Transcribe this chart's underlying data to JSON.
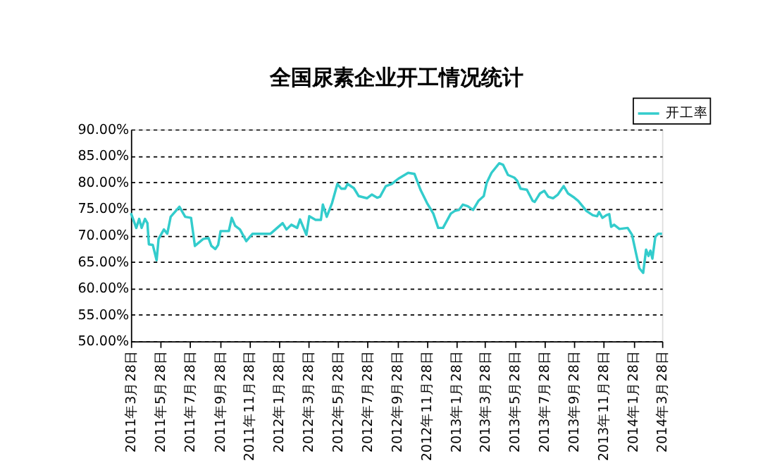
{
  "chart_data": {
    "type": "line",
    "title": "全国尿素企业开工情况统计",
    "x": [
      "2011-03-28",
      "2011-04-08",
      "2011-04-14",
      "2011-04-19",
      "2011-04-26",
      "2011-05-01",
      "2011-05-04",
      "2011-05-12",
      "2011-05-20",
      "2011-05-24",
      "2011-06-04",
      "2011-06-11",
      "2011-06-18",
      "2011-07-06",
      "2011-07-18",
      "2011-07-30",
      "2011-08-07",
      "2011-08-24",
      "2011-09-04",
      "2011-09-10",
      "2011-09-18",
      "2011-09-24",
      "2011-09-29",
      "2011-10-16",
      "2011-10-22",
      "2011-10-29",
      "2011-11-08",
      "2011-11-21",
      "2011-12-04",
      "2012-01-10",
      "2012-02-04",
      "2012-02-12",
      "2012-02-22",
      "2012-03-05",
      "2012-03-11",
      "2012-03-24",
      "2012-03-30",
      "2012-04-12",
      "2012-04-23",
      "2012-04-27",
      "2012-05-05",
      "2012-05-16",
      "2012-05-27",
      "2012-06-04",
      "2012-06-12",
      "2012-06-17",
      "2012-06-30",
      "2012-07-10",
      "2012-07-27",
      "2012-08-06",
      "2012-08-17",
      "2012-08-23",
      "2012-09-04",
      "2012-09-16",
      "2012-09-30",
      "2012-10-20",
      "2012-11-02",
      "2012-11-15",
      "2012-11-28",
      "2012-12-11",
      "2012-12-21",
      "2012-12-31",
      "2013-01-16",
      "2013-01-24",
      "2013-02-02",
      "2013-02-10",
      "2013-02-20",
      "2013-03-03",
      "2013-03-14",
      "2013-03-25",
      "2013-03-31",
      "2013-04-10",
      "2013-04-26",
      "2013-05-04",
      "2013-05-14",
      "2013-05-27",
      "2013-06-02",
      "2013-06-09",
      "2013-06-22",
      "2013-07-04",
      "2013-07-08",
      "2013-07-19",
      "2013-07-28",
      "2013-08-05",
      "2013-08-15",
      "2013-08-25",
      "2013-09-06",
      "2013-09-15",
      "2013-09-28",
      "2013-10-06",
      "2013-10-15",
      "2013-10-23",
      "2013-11-05",
      "2013-11-14",
      "2013-11-18",
      "2013-11-25",
      "2013-12-03",
      "2013-12-09",
      "2013-12-13",
      "2013-12-19",
      "2013-12-30",
      "2014-01-16",
      "2014-01-25",
      "2014-02-02",
      "2014-02-09",
      "2014-02-17",
      "2014-02-23",
      "2014-02-28",
      "2014-03-04",
      "2014-03-08",
      "2014-03-14",
      "2014-03-20",
      "2014-03-28"
    ],
    "series": [
      {
        "name": "开工率",
        "color": "#33cccc",
        "values": [
          74.2,
          71.4,
          73.1,
          71.4,
          73.1,
          72.3,
          68.3,
          68.2,
          65.3,
          69.3,
          71.1,
          70.3,
          73.5,
          75.4,
          73.5,
          73.3,
          68.0,
          69.3,
          69.5,
          68.0,
          67.4,
          68.2,
          70.8,
          70.8,
          73.3,
          71.8,
          71.1,
          68.9,
          70.3,
          70.3,
          72.3,
          71.1,
          72.0,
          71.4,
          73.0,
          70.1,
          73.6,
          72.9,
          72.9,
          75.8,
          73.5,
          76.1,
          79.7,
          78.8,
          78.8,
          79.7,
          78.9,
          77.4,
          77.0,
          77.7,
          77.1,
          77.3,
          79.3,
          79.7,
          80.7,
          81.8,
          81.6,
          78.5,
          76.1,
          74.1,
          71.4,
          71.4,
          74.1,
          74.6,
          74.8,
          75.8,
          75.5,
          74.8,
          76.5,
          77.4,
          79.9,
          81.8,
          83.6,
          83.3,
          81.4,
          80.9,
          80.3,
          78.8,
          78.6,
          76.5,
          76.3,
          77.9,
          78.4,
          77.3,
          77.0,
          77.7,
          79.3,
          77.9,
          77.1,
          76.5,
          75.5,
          74.6,
          73.8,
          73.6,
          74.4,
          73.3,
          73.8,
          74.0,
          71.6,
          72.0,
          71.2,
          71.4,
          70.1,
          66.7,
          63.8,
          62.9,
          67.3,
          66.1,
          67.1,
          65.6,
          69.7,
          70.3,
          70.3
        ]
      }
    ],
    "xlim": [
      "2011-03-28",
      "2014-03-28"
    ],
    "xticks": [
      {
        "value": "2011-03-28",
        "label": "2011年3月28日"
      },
      {
        "value": "2011-05-28",
        "label": "2011年5月28日"
      },
      {
        "value": "2011-07-28",
        "label": "2011年7月28日"
      },
      {
        "value": "2011-09-28",
        "label": "2011年9月28日"
      },
      {
        "value": "2011-11-28",
        "label": "2011年11月28日"
      },
      {
        "value": "2012-01-28",
        "label": "2012年1月28日"
      },
      {
        "value": "2012-03-28",
        "label": "2012年3月28日"
      },
      {
        "value": "2012-05-28",
        "label": "2012年5月28日"
      },
      {
        "value": "2012-07-28",
        "label": "2012年7月28日"
      },
      {
        "value": "2012-09-28",
        "label": "2012年9月28日"
      },
      {
        "value": "2012-11-28",
        "label": "2012年11月28日"
      },
      {
        "value": "2013-01-28",
        "label": "2013年1月28日"
      },
      {
        "value": "2013-03-28",
        "label": "2013年3月28日"
      },
      {
        "value": "2013-05-28",
        "label": "2013年5月28日"
      },
      {
        "value": "2013-07-28",
        "label": "2013年7月28日"
      },
      {
        "value": "2013-09-28",
        "label": "2013年9月28日"
      },
      {
        "value": "2013-11-28",
        "label": "2013年11月28日"
      },
      {
        "value": "2014-01-28",
        "label": "2014年1月28日"
      },
      {
        "value": "2014-03-28",
        "label": "2014年3月28日"
      }
    ],
    "ylim": [
      50,
      90
    ],
    "yticks": [
      {
        "value": 50,
        "label": "50.00%"
      },
      {
        "value": 55,
        "label": "55.00%"
      },
      {
        "value": 60,
        "label": "60.00%"
      },
      {
        "value": 65,
        "label": "65.00%"
      },
      {
        "value": 70,
        "label": "70.00%"
      },
      {
        "value": 75,
        "label": "75.00%"
      },
      {
        "value": 80,
        "label": "80.00%"
      },
      {
        "value": 85,
        "label": "85.00%"
      },
      {
        "value": 90,
        "label": "90.00%"
      }
    ],
    "grid": "y",
    "legend": "top right",
    "marker": "none",
    "line_style": "solid"
  }
}
